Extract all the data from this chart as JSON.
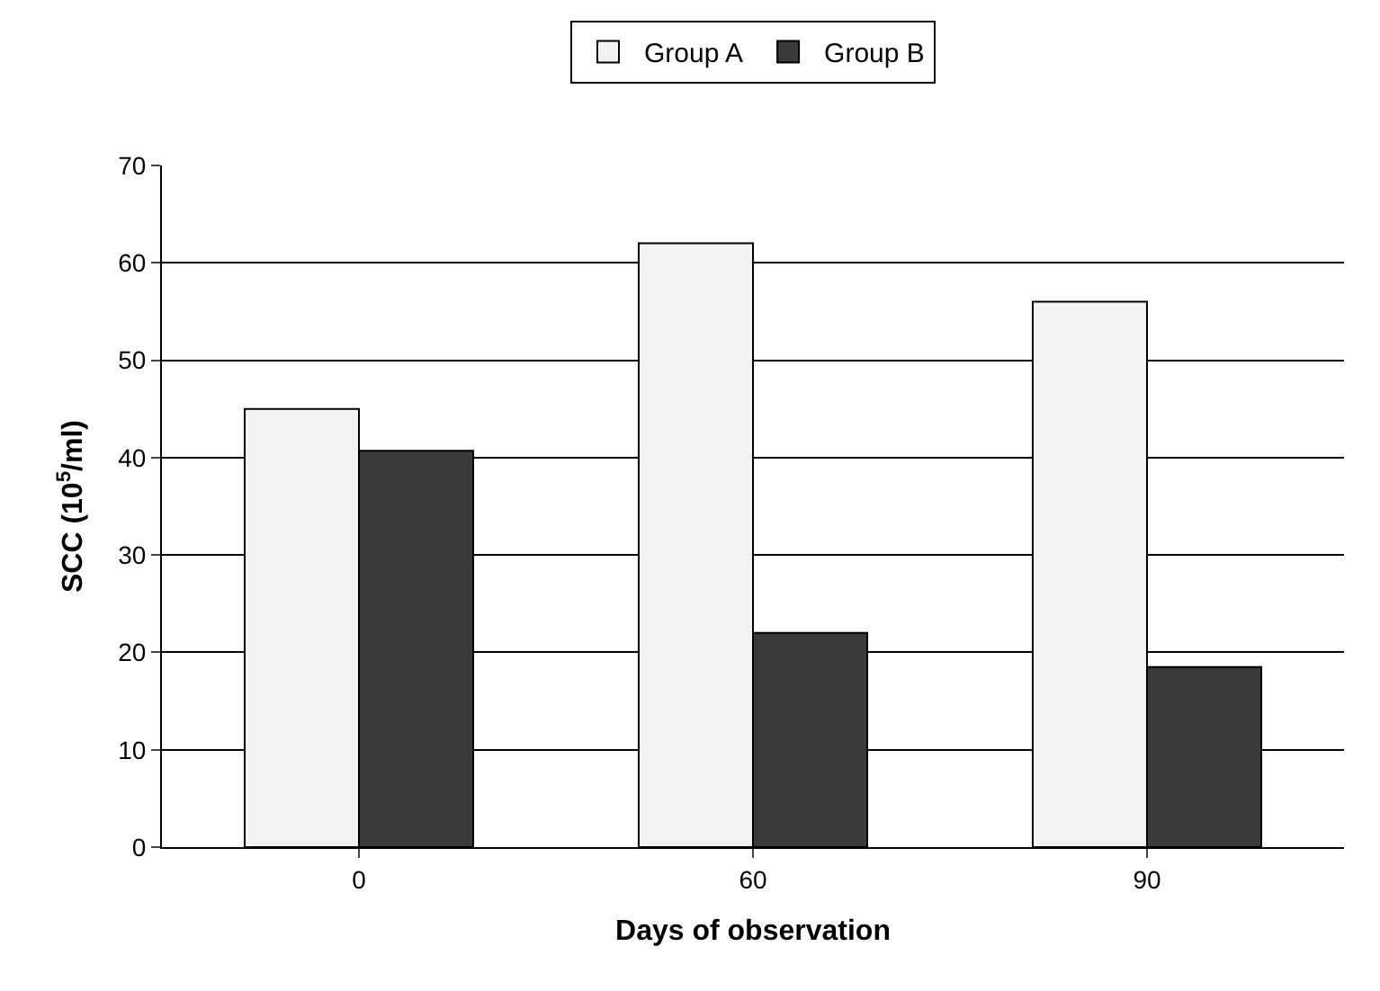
{
  "chart_data": {
    "type": "bar",
    "xlabel": "Days of observation",
    "ylabel": "SCC (10$^{5}$/ml)",
    "categories": [
      "0",
      "60",
      "90"
    ],
    "series": [
      {
        "name": "Group A",
        "color": "#f2f2f2",
        "values": [
          45,
          62,
          56
        ]
      },
      {
        "name": "Group B",
        "color": "#3a3a3a",
        "values": [
          40.7,
          22,
          18.5
        ]
      }
    ],
    "ylim": [
      0,
      70
    ],
    "yticks": [
      0,
      10,
      20,
      30,
      40,
      50,
      60,
      70
    ],
    "grid": "y",
    "legend": "top"
  }
}
